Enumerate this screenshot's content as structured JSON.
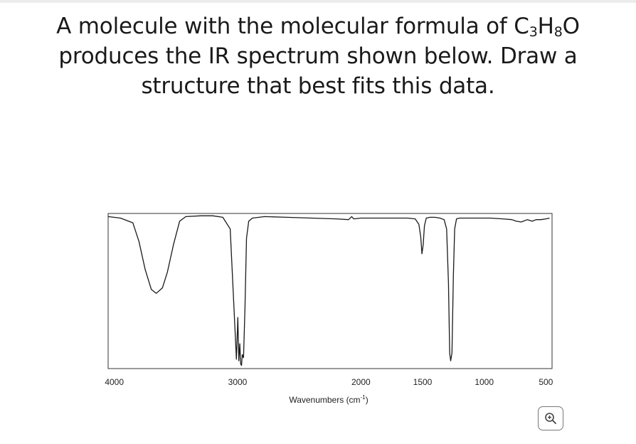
{
  "question": {
    "line1_pre": "A molecule with the molecular formula of C",
    "sub1": "3",
    "mid1": "H",
    "sub2": "8",
    "post1": "O",
    "line2": "produces the IR spectrum shown below. Draw a",
    "line3": "structure that best fits this data."
  },
  "chart_data": {
    "type": "line",
    "title": "",
    "xlabel": "Wavenumbers (cm",
    "xlabel_sup": "-1",
    "xlabel_end": ")",
    "ylabel": "",
    "xlim": [
      4050,
      450
    ],
    "ylim": [
      0,
      100
    ],
    "x_ticks": [
      4000,
      3000,
      2000,
      1500,
      1000,
      500
    ],
    "grid": false,
    "series": [
      {
        "color": "#1a1a1a",
        "points": [
          [
            4050,
            98
          ],
          [
            3950,
            97
          ],
          [
            3850,
            94
          ],
          [
            3800,
            82
          ],
          [
            3750,
            64
          ],
          [
            3700,
            51
          ],
          [
            3660,
            48.5
          ],
          [
            3610,
            52
          ],
          [
            3570,
            62
          ],
          [
            3520,
            80
          ],
          [
            3470,
            95
          ],
          [
            3420,
            98
          ],
          [
            3300,
            98.5
          ],
          [
            3200,
            98.5
          ],
          [
            3120,
            97.5
          ],
          [
            3060,
            90
          ],
          [
            3030,
            40
          ],
          [
            3010,
            6
          ],
          [
            2998,
            33
          ],
          [
            2990,
            5
          ],
          [
            2982,
            16
          ],
          [
            2975,
            3
          ],
          [
            2968,
            2
          ],
          [
            2962,
            9
          ],
          [
            2952,
            7
          ],
          [
            2940,
            40
          ],
          [
            2928,
            84
          ],
          [
            2910,
            95
          ],
          [
            2880,
            97
          ],
          [
            2780,
            98
          ],
          [
            2600,
            97.5
          ],
          [
            2400,
            97
          ],
          [
            2200,
            96.5
          ],
          [
            2100,
            96
          ],
          [
            2075,
            98
          ],
          [
            2058,
            96.5
          ],
          [
            2000,
            97
          ],
          [
            1800,
            97
          ],
          [
            1620,
            97
          ],
          [
            1560,
            96.5
          ],
          [
            1530,
            93
          ],
          [
            1515,
            85
          ],
          [
            1505,
            74
          ],
          [
            1495,
            80
          ],
          [
            1485,
            92
          ],
          [
            1470,
            97
          ],
          [
            1440,
            97.5
          ],
          [
            1400,
            97.5
          ],
          [
            1360,
            97
          ],
          [
            1325,
            96
          ],
          [
            1305,
            90
          ],
          [
            1290,
            55
          ],
          [
            1280,
            10
          ],
          [
            1272,
            5
          ],
          [
            1262,
            10
          ],
          [
            1250,
            60
          ],
          [
            1240,
            90
          ],
          [
            1225,
            96.5
          ],
          [
            1200,
            97
          ],
          [
            1100,
            97
          ],
          [
            950,
            97
          ],
          [
            850,
            96.5
          ],
          [
            775,
            96
          ],
          [
            740,
            95
          ],
          [
            700,
            94.5
          ],
          [
            650,
            96
          ],
          [
            610,
            95
          ],
          [
            580,
            96
          ],
          [
            540,
            96
          ],
          [
            500,
            96.5
          ],
          [
            470,
            97
          ]
        ]
      }
    ]
  },
  "zoom_button": {
    "icon": "zoom-in-icon"
  }
}
